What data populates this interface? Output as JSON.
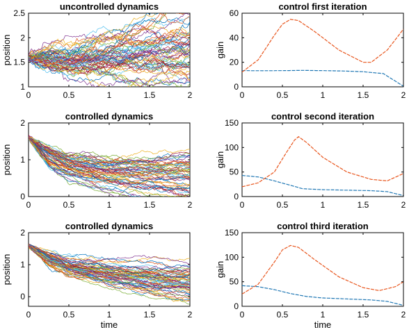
{
  "figure": {
    "colors": {
      "gain_1": "#1f77b4",
      "gain_2": "#e8541b",
      "trajectories": [
        "#0072BD",
        "#D95319",
        "#EDB120",
        "#7E2F8E",
        "#77AC30",
        "#4DBEEE",
        "#A2142F"
      ]
    }
  },
  "chart_data": [
    {
      "type": "line",
      "title": "uncontrolled dynamics",
      "xlabel": "",
      "ylabel": "position",
      "xlim": [
        0,
        2
      ],
      "ylim": [
        1,
        2.5
      ],
      "xticks": [
        "0",
        "0.5",
        "1",
        "1.5",
        "2"
      ],
      "yticks": [
        "1",
        "1.5",
        "2",
        "2.5"
      ],
      "grid": false,
      "description": "many noisy sample paths",
      "series": [
        {
          "x": [
            0,
            0.5,
            1,
            1.5,
            2
          ],
          "y": [
            1.6,
            1.58,
            1.72,
            1.85,
            1.95
          ]
        },
        {
          "x": [
            0,
            0.5,
            1,
            1.5,
            2
          ],
          "y": [
            1.6,
            1.52,
            1.65,
            1.72,
            1.8
          ]
        },
        {
          "x": [
            0,
            0.5,
            1,
            1.5,
            2
          ],
          "y": [
            1.6,
            1.68,
            1.85,
            2.05,
            2.22
          ]
        },
        {
          "x": [
            0,
            0.5,
            1,
            1.5,
            2
          ],
          "y": [
            1.6,
            1.45,
            1.5,
            1.55,
            1.58
          ]
        },
        {
          "x": [
            0,
            0.5,
            1,
            1.5,
            2
          ],
          "y": [
            1.6,
            1.55,
            1.48,
            1.44,
            1.43
          ]
        }
      ]
    },
    {
      "type": "line",
      "title": "control first iteration",
      "xlabel": "",
      "ylabel": "gain",
      "xlim": [
        0,
        2
      ],
      "ylim": [
        0,
        60
      ],
      "xticks": [
        "0",
        "0.5",
        "1",
        "1.5",
        "2"
      ],
      "yticks": [
        "0",
        "20",
        "40",
        "60"
      ],
      "grid": false,
      "series": [
        {
          "x": [
            0,
            0.25,
            0.5,
            0.75,
            1,
            1.25,
            1.5,
            1.75,
            2
          ],
          "y": [
            13.2,
            13.1,
            13.2,
            13.4,
            13.2,
            12.9,
            12.3,
            10.8,
            0.5
          ]
        },
        {
          "x": [
            0,
            0.2,
            0.4,
            0.5,
            0.6,
            0.7,
            0.9,
            1.2,
            1.5,
            1.6,
            1.8,
            2
          ],
          "y": [
            12,
            22,
            42,
            51,
            55,
            54,
            45,
            30,
            20,
            20,
            30,
            47
          ]
        }
      ]
    },
    {
      "type": "line",
      "title": "controlled dynamics",
      "xlabel": "",
      "ylabel": "position",
      "xlim": [
        0,
        2
      ],
      "ylim": [
        0,
        2
      ],
      "xticks": [
        "0",
        "0.5",
        "1",
        "1.5",
        "2"
      ],
      "yticks": [
        "0",
        "1",
        "2"
      ],
      "grid": false,
      "description": "many noisy sample paths",
      "series": [
        {
          "x": [
            0,
            0.25,
            0.5,
            1,
            1.5,
            2
          ],
          "y": [
            1.6,
            1.05,
            0.8,
            0.6,
            0.45,
            0.35
          ]
        },
        {
          "x": [
            0,
            0.25,
            0.5,
            1,
            1.5,
            2
          ],
          "y": [
            1.6,
            1.2,
            0.95,
            0.75,
            0.7,
            0.72
          ]
        },
        {
          "x": [
            0,
            0.25,
            0.5,
            1,
            1.5,
            2
          ],
          "y": [
            1.6,
            0.9,
            0.6,
            0.4,
            0.3,
            0.22
          ]
        },
        {
          "x": [
            0,
            0.25,
            0.5,
            1,
            1.5,
            2
          ],
          "y": [
            1.6,
            1.35,
            1.05,
            0.8,
            0.88,
            1.0
          ]
        }
      ]
    },
    {
      "type": "line",
      "title": "control second iteration",
      "xlabel": "",
      "ylabel": "gain",
      "xlim": [
        0,
        2
      ],
      "ylim": [
        0,
        150
      ],
      "xticks": [
        "0",
        "0.5",
        "1",
        "1.5",
        "2"
      ],
      "yticks": [
        "0",
        "50",
        "100",
        "150"
      ],
      "grid": false,
      "series": [
        {
          "x": [
            0,
            0.2,
            0.4,
            0.6,
            0.75,
            1,
            1.3,
            1.6,
            1.8,
            2
          ],
          "y": [
            43,
            40,
            32,
            23,
            16,
            14,
            13,
            12,
            10,
            2
          ]
        },
        {
          "x": [
            0,
            0.2,
            0.4,
            0.55,
            0.65,
            0.7,
            0.8,
            1,
            1.3,
            1.6,
            1.8,
            2
          ],
          "y": [
            20,
            28,
            50,
            90,
            115,
            122,
            110,
            80,
            50,
            35,
            32,
            47
          ]
        }
      ]
    },
    {
      "type": "line",
      "title": "controlled dynamics",
      "xlabel": "time",
      "ylabel": "position",
      "xlim": [
        0,
        2
      ],
      "ylim": [
        -0.3,
        2
      ],
      "xticks": [
        "0",
        "0.5",
        "1",
        "1.5",
        "2"
      ],
      "yticks": [
        "0",
        "1",
        "2"
      ],
      "grid": false,
      "description": "many noisy sample paths",
      "series": [
        {
          "x": [
            0,
            0.25,
            0.5,
            1,
            1.5,
            2
          ],
          "y": [
            1.6,
            1.2,
            0.95,
            0.75,
            0.6,
            0.5
          ]
        },
        {
          "x": [
            0,
            0.25,
            0.5,
            1,
            1.5,
            2
          ],
          "y": [
            1.6,
            1.35,
            1.1,
            0.95,
            0.9,
            0.85
          ]
        },
        {
          "x": [
            0,
            0.25,
            0.5,
            1,
            1.5,
            2
          ],
          "y": [
            1.6,
            1.05,
            0.8,
            0.5,
            0.3,
            0.15
          ]
        },
        {
          "x": [
            0,
            0.25,
            0.5,
            1,
            1.5,
            2
          ],
          "y": [
            1.6,
            1.25,
            0.9,
            0.65,
            0.45,
            0.4
          ]
        }
      ]
    },
    {
      "type": "line",
      "title": "control third iteration",
      "xlabel": "time",
      "ylabel": "gain",
      "xlim": [
        0,
        2
      ],
      "ylim": [
        0,
        150
      ],
      "xticks": [
        "0",
        "0.5",
        "1",
        "1.5",
        "2"
      ],
      "yticks": [
        "0",
        "50",
        "100",
        "150"
      ],
      "grid": false,
      "series": [
        {
          "x": [
            0,
            0.2,
            0.4,
            0.6,
            0.8,
            1,
            1.3,
            1.6,
            1.8,
            2
          ],
          "y": [
            42,
            40,
            34,
            26,
            20,
            17,
            15,
            13,
            10,
            2
          ]
        },
        {
          "x": [
            0,
            0.2,
            0.4,
            0.5,
            0.6,
            0.7,
            0.9,
            1.2,
            1.5,
            1.7,
            1.9,
            2
          ],
          "y": [
            25,
            45,
            90,
            115,
            124,
            120,
            95,
            60,
            38,
            32,
            40,
            50
          ]
        }
      ]
    }
  ]
}
